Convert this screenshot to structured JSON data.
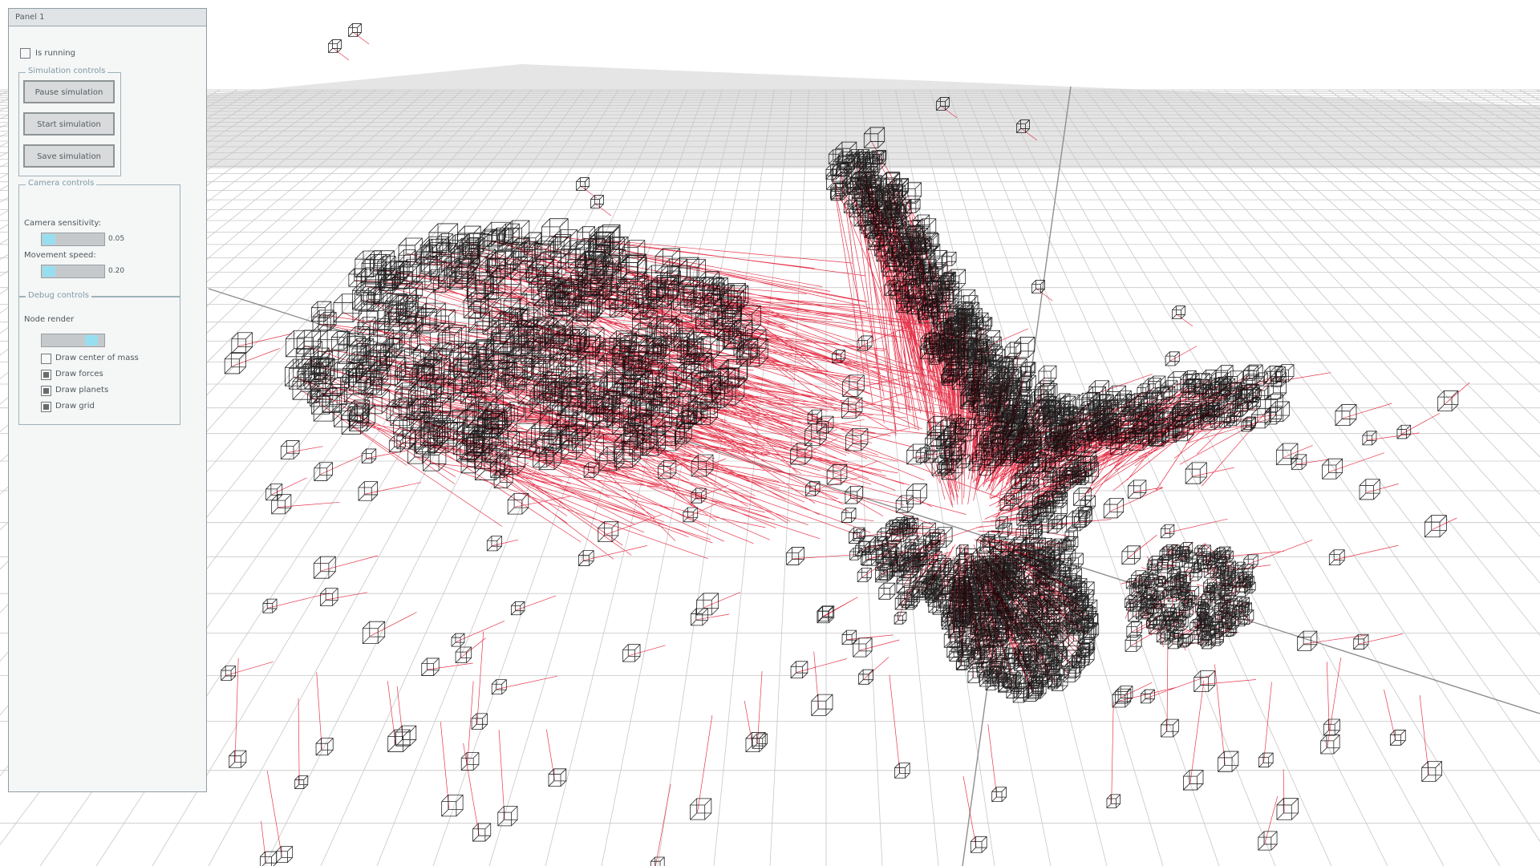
{
  "panel": {
    "title": "Panel 1",
    "is_running": {
      "label": "Is running",
      "checked": false
    }
  },
  "simulation_controls": {
    "title": "Simulation controls",
    "pause_label": "Pause simulation",
    "start_label": "Start simulation",
    "save_label": "Save simulation"
  },
  "camera_controls": {
    "title": "Camera controls",
    "sensitivity_label": "Camera sensitivity:",
    "sensitivity_value": "0.05",
    "movement_label": "Movement speed:",
    "movement_value": "0.20"
  },
  "debug_controls": {
    "title": "Debug controls",
    "node_render_label": "Node render",
    "node_render_level": 0.85,
    "options": [
      {
        "label": "Draw center of mass",
        "checked": false
      },
      {
        "label": "Draw forces",
        "checked": true
      },
      {
        "label": "Draw planets",
        "checked": true
      },
      {
        "label": "Draw grid",
        "checked": true
      }
    ]
  },
  "colors": {
    "grid": "#c7c7c7",
    "node": "#000000",
    "force": "#e3213a",
    "slider_fill": "#97dff0"
  }
}
